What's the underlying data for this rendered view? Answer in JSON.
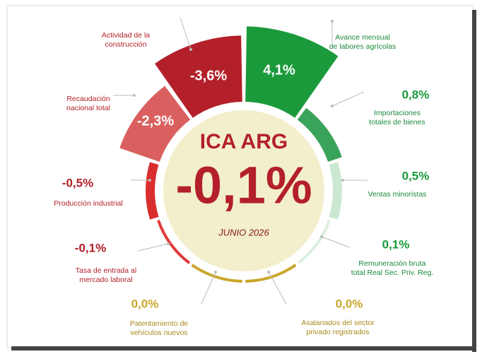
{
  "center": {
    "title": "ICA ARG",
    "value_label": "-0,1%",
    "date": "JUNIO 2026"
  },
  "items": [
    {
      "label": [
        "Avance mensual",
        "de labores agrícolas"
      ],
      "value": 4.1,
      "value_label": "4,1%",
      "color": "#1b9a3c"
    },
    {
      "label": [
        "Importaciones",
        "totales de bienes"
      ],
      "value": 0.8,
      "value_label": "0,8%",
      "color": "#3aa35a"
    },
    {
      "label": [
        "Ventas minoristas"
      ],
      "value": 0.5,
      "value_label": "0,5%",
      "color": "#cbe8d0"
    },
    {
      "label": [
        "Remuneración bruta",
        "total Real Sec. Priv. Reg."
      ],
      "value": 0.1,
      "value_label": "0,1%",
      "color": "#dcefdf"
    },
    {
      "label": [
        "Asalariados del sector",
        "privado registrados"
      ],
      "value": 0.0,
      "value_label": "0,0%",
      "color": "#c9a62c"
    },
    {
      "label": [
        "Patentamiento de",
        "vehículos nuevos"
      ],
      "value": 0.0,
      "value_label": "0,0%",
      "color": "#c9a62c"
    },
    {
      "label": [
        "Tasa de entrada al",
        "mercado laboral"
      ],
      "value": -0.1,
      "value_label": "-0,1%",
      "color": "#e23b3b"
    },
    {
      "label": [
        "Producción industrial"
      ],
      "value": -0.5,
      "value_label": "-0,5%",
      "color": "#d92e2e"
    },
    {
      "label": [
        "Recaudación",
        "nacional total"
      ],
      "value": -2.3,
      "value_label": "-2,3%",
      "color": "#d9605f"
    },
    {
      "label": [
        "Actividad de la",
        "construcción"
      ],
      "value": -3.6,
      "value_label": "-3,6%",
      "color": "#b3202a"
    }
  ]
}
